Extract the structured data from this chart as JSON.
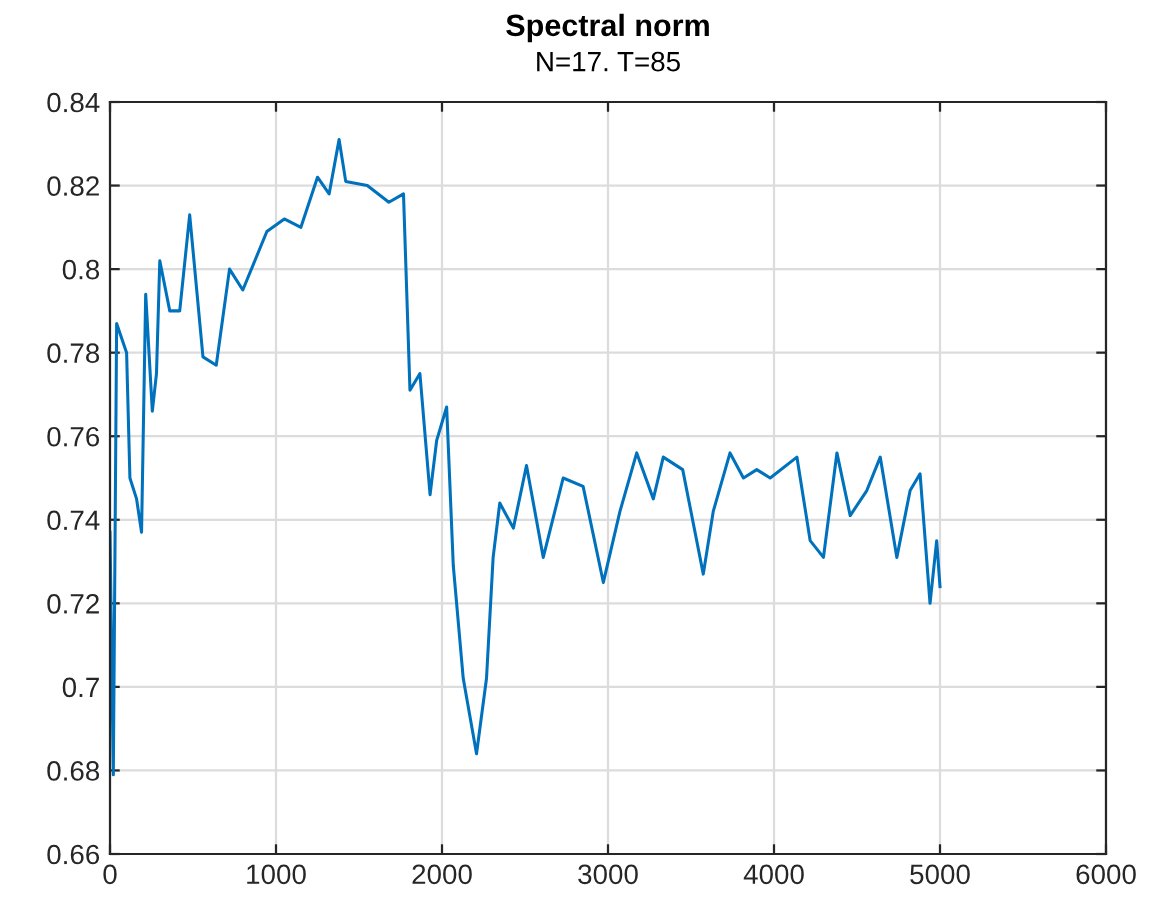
{
  "chart_data": {
    "type": "line",
    "title": "Spectral norm",
    "subtitle": "N=17. T=85",
    "series": [
      {
        "color": "#0072bd",
        "x": [
          0,
          20,
          40,
          100,
          120,
          160,
          190,
          215,
          255,
          280,
          300,
          360,
          420,
          480,
          560,
          640,
          720,
          800,
          945,
          1050,
          1150,
          1250,
          1320,
          1380,
          1420,
          1550,
          1680,
          1768,
          1807,
          1867,
          1928,
          1968,
          2028,
          2068,
          2128,
          2208,
          2268,
          2308,
          2348,
          2430,
          2509,
          2610,
          2730,
          2850,
          2972,
          3072,
          3173,
          3273,
          3333,
          3450,
          3574,
          3634,
          3735,
          3816,
          3896,
          3977,
          4138,
          4218,
          4298,
          4379,
          4459,
          4559,
          4640,
          4740,
          4820,
          4880,
          4940,
          4980,
          5000
        ],
        "values": [
          0.737,
          0.679,
          0.787,
          0.78,
          0.75,
          0.745,
          0.737,
          0.794,
          0.766,
          0.775,
          0.802,
          0.79,
          0.79,
          0.813,
          0.779,
          0.777,
          0.8,
          0.795,
          0.809,
          0.812,
          0.81,
          0.822,
          0.818,
          0.831,
          0.821,
          0.82,
          0.816,
          0.818,
          0.771,
          0.775,
          0.746,
          0.759,
          0.767,
          0.729,
          0.702,
          0.684,
          0.702,
          0.731,
          0.744,
          0.738,
          0.753,
          0.731,
          0.75,
          0.748,
          0.725,
          0.742,
          0.756,
          0.745,
          0.755,
          0.752,
          0.727,
          0.742,
          0.756,
          0.75,
          0.752,
          0.75,
          0.755,
          0.735,
          0.731,
          0.756,
          0.741,
          0.747,
          0.755,
          0.731,
          0.747,
          0.751,
          0.72,
          0.735,
          0.724
        ]
      }
    ],
    "xlim": [
      0,
      6000
    ],
    "xticks": [
      0,
      1000,
      2000,
      3000,
      4000,
      5000,
      6000
    ],
    "ylim": [
      0.66,
      0.84
    ],
    "yticks": [
      {
        "value": 0.66,
        "label": "0.66"
      },
      {
        "value": 0.68,
        "label": "0.68"
      },
      {
        "value": 0.7,
        "label": "0.7"
      },
      {
        "value": 0.72,
        "label": "0.72"
      },
      {
        "value": 0.74,
        "label": "0.74"
      },
      {
        "value": 0.76,
        "label": "0.76"
      },
      {
        "value": 0.78,
        "label": "0.78"
      },
      {
        "value": 0.8,
        "label": "0.8"
      },
      {
        "value": 0.82,
        "label": "0.82"
      },
      {
        "value": 0.84,
        "label": "0.84"
      }
    ],
    "grid": true,
    "marker": "none",
    "line_style": "solid"
  }
}
